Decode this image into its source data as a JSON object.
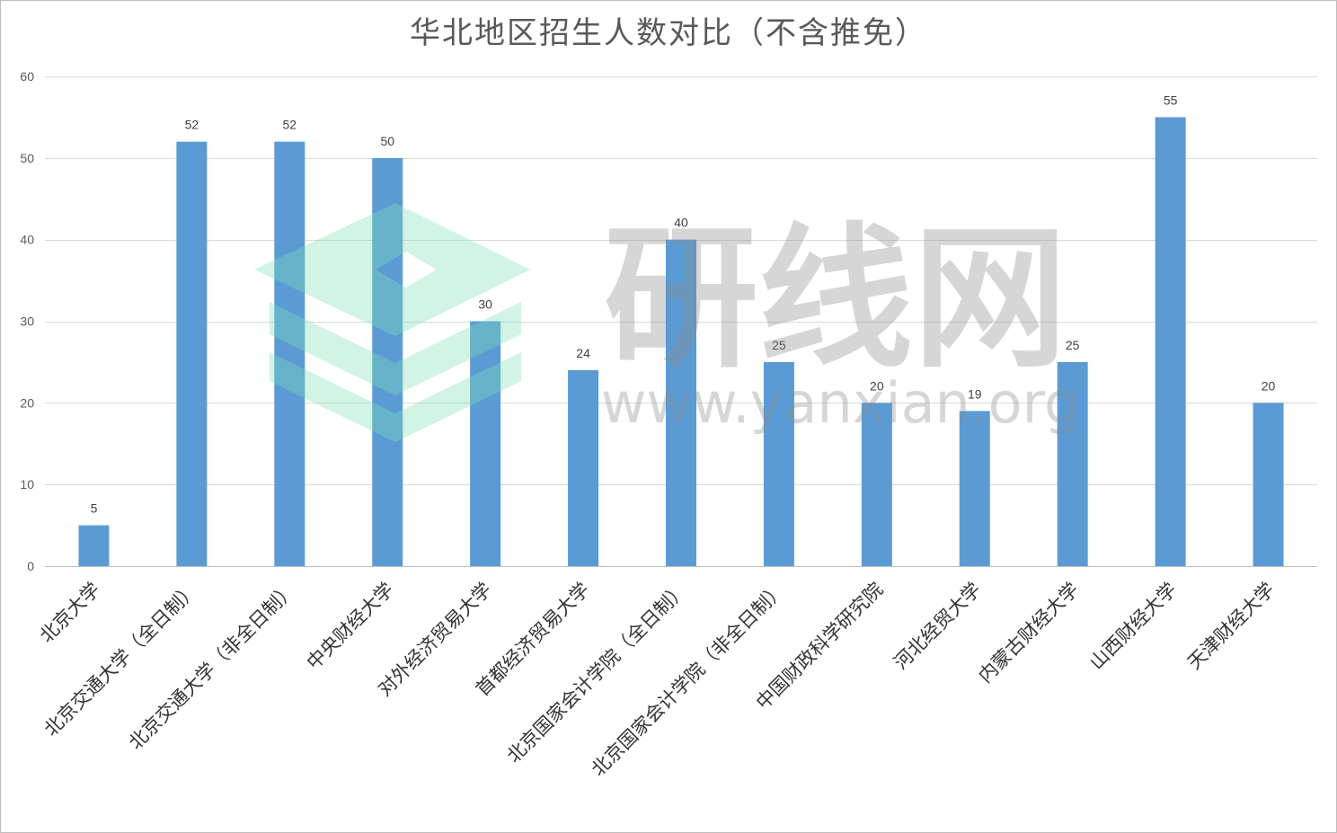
{
  "chart_data": {
    "type": "bar",
    "title": "华北地区招生人数对比（不含推免）",
    "categories": [
      "北京大学",
      "北京交通大学（全日制）",
      "北京交通大学（非全日制）",
      "中央财经大学",
      "对外经济贸易大学",
      "首都经济贸易大学",
      "北京国家会计学院（全日制）",
      "北京国家会计学院（非全日制）",
      "中国财政科学研究院",
      "河北经贸大学",
      "内蒙古财经大学",
      "山西财经大学",
      "天津财经大学"
    ],
    "values": [
      5,
      52,
      52,
      50,
      30,
      24,
      40,
      25,
      20,
      19,
      25,
      55,
      20
    ],
    "ylim": [
      0,
      60
    ],
    "yticks": [
      0,
      10,
      20,
      30,
      40,
      50,
      60
    ],
    "grid": true,
    "data_labels": true,
    "colors": {
      "bar": "#5B9BD5",
      "grid": "#D9D9D9",
      "axis_line": "#BFBFBF",
      "title_text": "#595959",
      "axis_text": "#595959",
      "label_text": "#404040",
      "category_text": "#333333"
    }
  },
  "watermark": {
    "text": "研线网",
    "url": "www.yanxian.org",
    "text_color": "#8C8C8C",
    "logo_color": "#7EE0B5"
  }
}
